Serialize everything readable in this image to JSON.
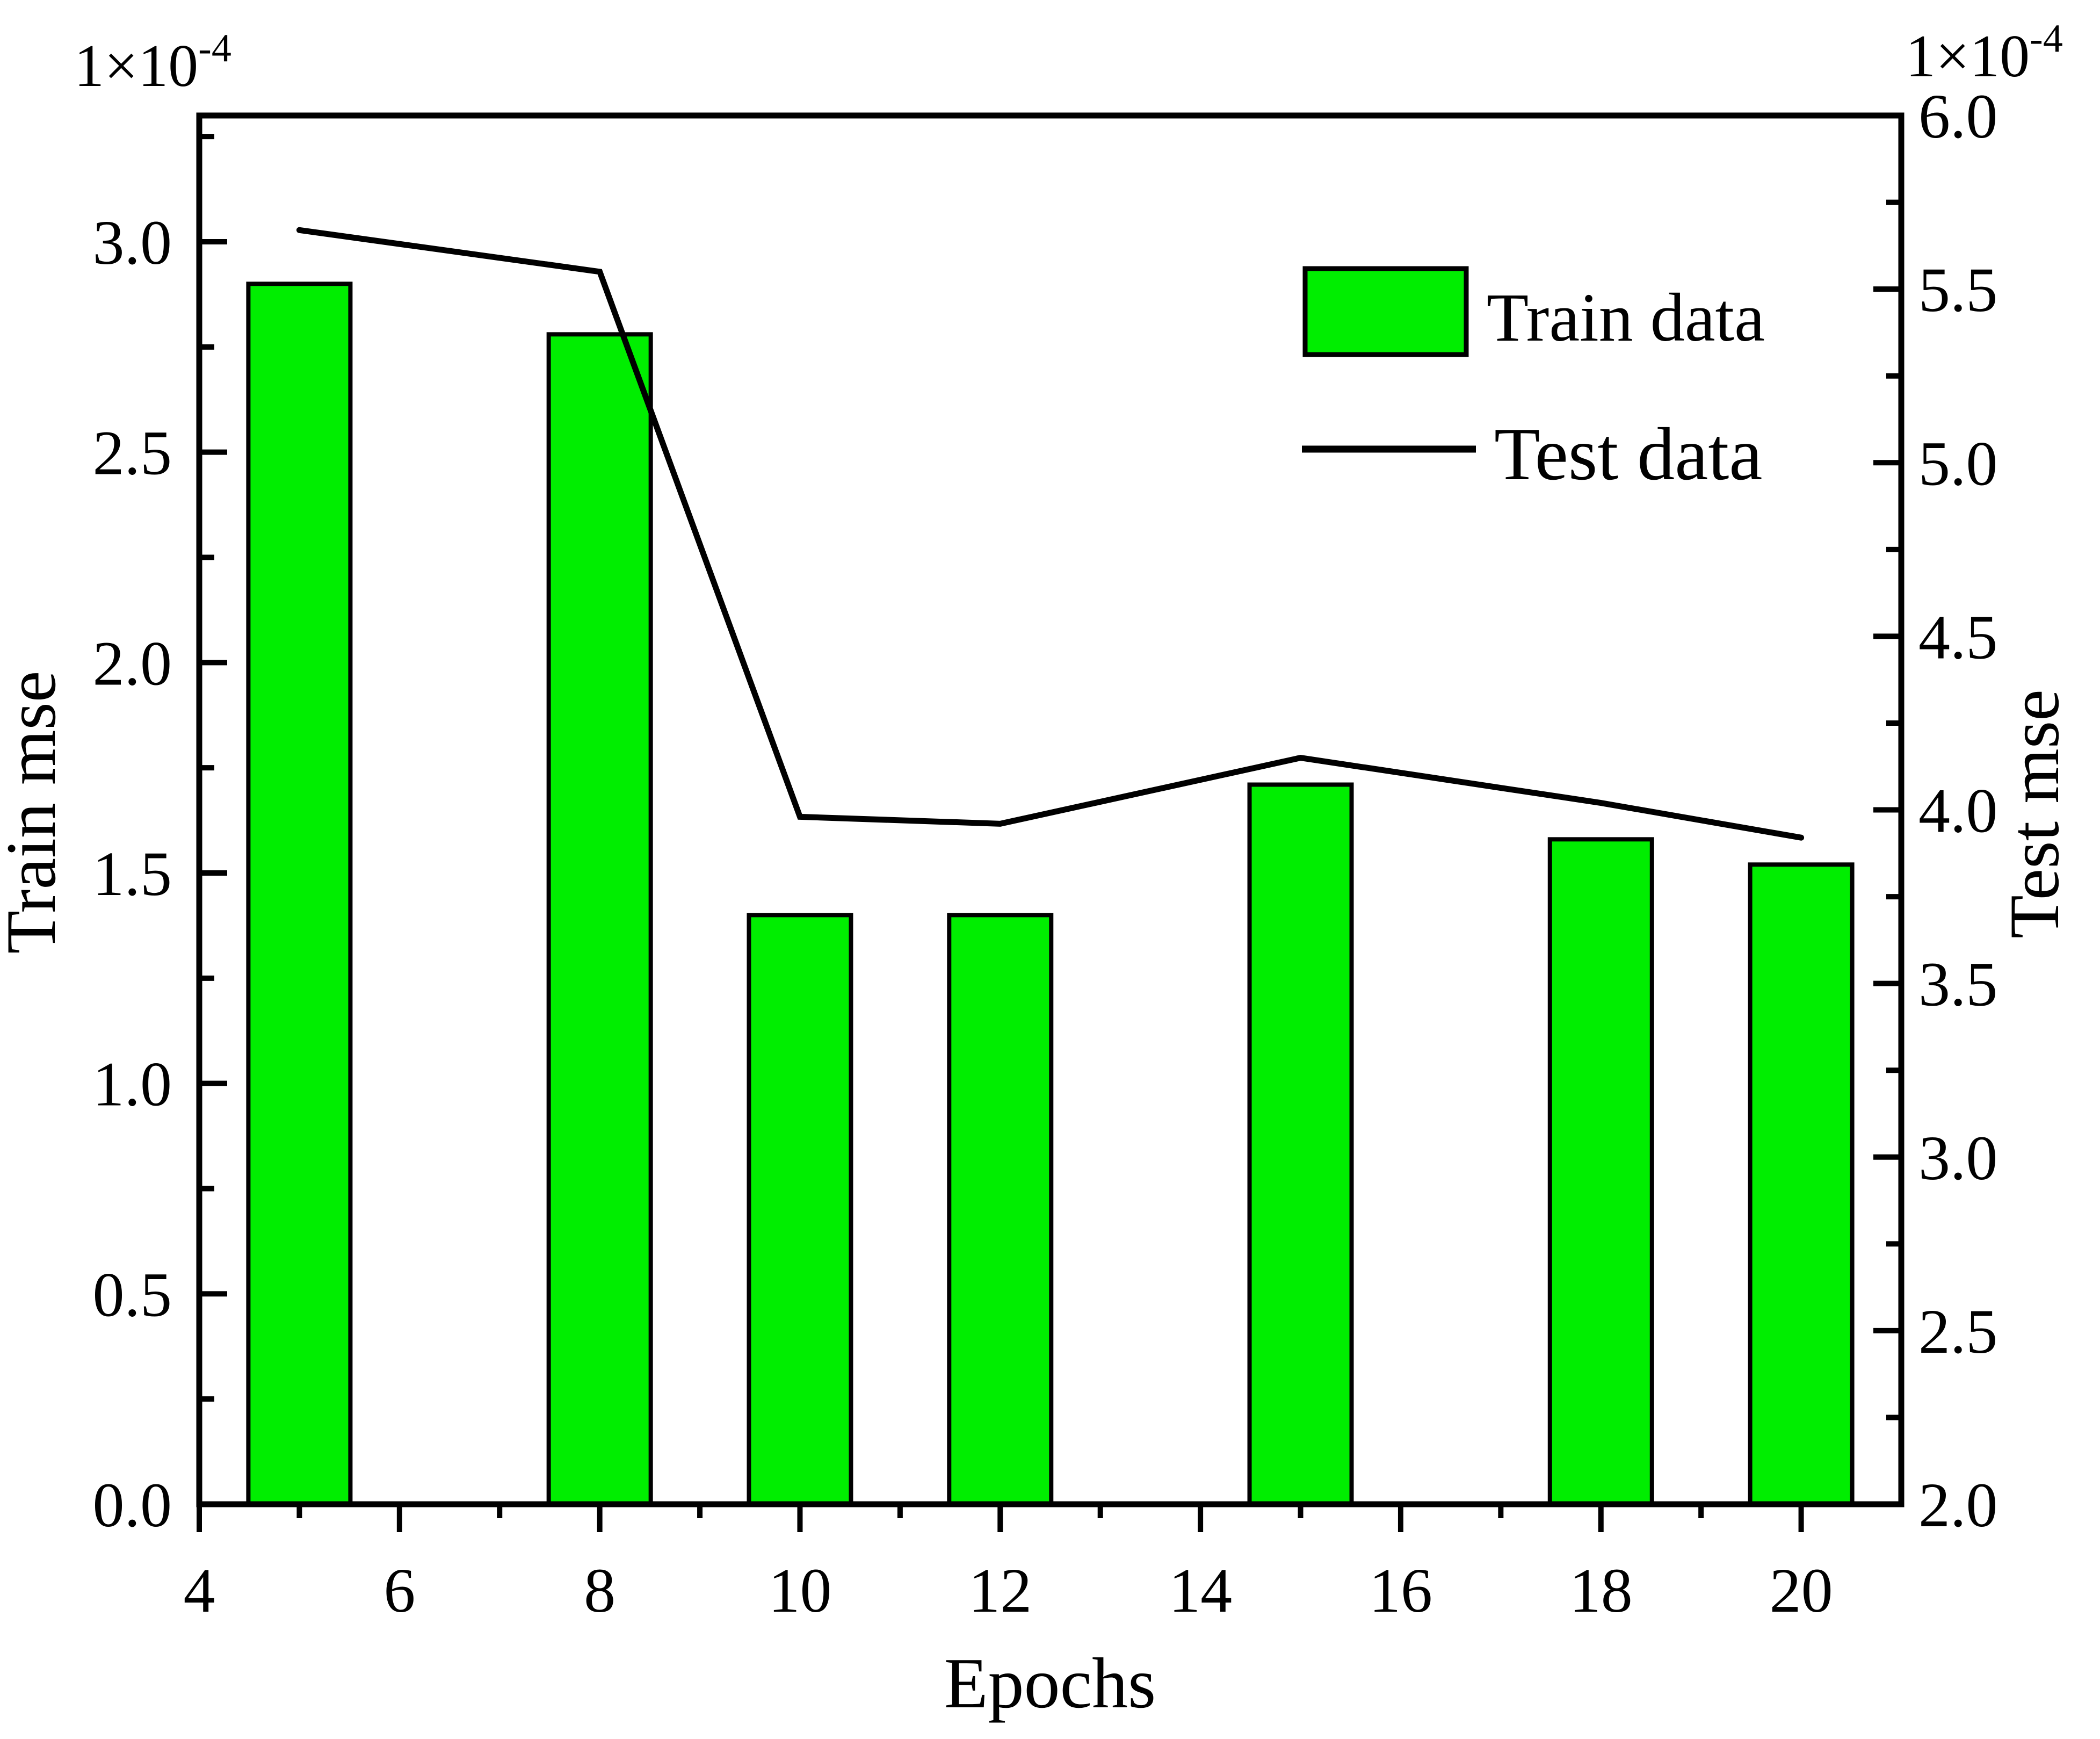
{
  "chart_data": {
    "type": "bar",
    "subtype": "bar+line combo, dual y-axis",
    "background_color": "#FFFFFF",
    "frame_color": "#000000",
    "series": [
      {
        "name": "Train data",
        "type": "bar",
        "axis": "left",
        "color": "#00EE00",
        "border_color": "#000000",
        "x": [
          5,
          8,
          10,
          12,
          15,
          18,
          20
        ],
        "values": [
          2.9,
          2.78,
          1.4,
          1.4,
          1.71,
          1.58,
          1.52
        ]
      },
      {
        "name": "Test data",
        "type": "line",
        "axis": "right",
        "color": "#000000",
        "x": [
          5,
          8,
          10,
          12,
          15,
          18,
          20
        ],
        "values": [
          5.67,
          5.55,
          3.98,
          3.96,
          4.15,
          4.02,
          3.92
        ]
      }
    ],
    "x_axis": {
      "label": "Epochs",
      "range": [
        4,
        21
      ],
      "major_ticks": [
        4,
        6,
        8,
        10,
        12,
        14,
        16,
        18,
        20
      ],
      "tick_labels": [
        "4",
        "6",
        "8",
        "10",
        "12",
        "14",
        "16",
        "18",
        "20"
      ],
      "minor_ticks": [
        5,
        7,
        9,
        11,
        13,
        15,
        17,
        19
      ]
    },
    "left_axis": {
      "label": "Train mse",
      "scale_note_base": "1×10",
      "scale_note_exp": "-4",
      "range": [
        0,
        3.3
      ],
      "major_ticks": [
        0,
        0.5,
        1.0,
        1.5,
        2.0,
        2.5,
        3.0
      ],
      "tick_labels": [
        "0.0",
        "0.5",
        "1.0",
        "1.5",
        "2.0",
        "2.5",
        "3.0"
      ],
      "minor_ticks": [
        0.25,
        0.75,
        1.25,
        1.75,
        2.25,
        2.75,
        3.25
      ]
    },
    "right_axis": {
      "label": "Test mse",
      "scale_note_base": "1×10",
      "scale_note_exp": "-4",
      "range": [
        2.0,
        6.0
      ],
      "major_ticks": [
        2.0,
        2.5,
        3.0,
        3.5,
        4.0,
        4.5,
        5.0,
        5.5,
        6.0
      ],
      "tick_labels": [
        "2.0",
        "2.5",
        "3.0",
        "3.5",
        "4.0",
        "4.5",
        "5.0",
        "5.5",
        "6.0"
      ],
      "minor_ticks": [
        2.25,
        2.75,
        3.25,
        3.75,
        4.25,
        4.75,
        5.25,
        5.75
      ]
    },
    "legend": {
      "position": "upper-right-inside",
      "items": [
        {
          "label": "Train data",
          "marker": "filled-square"
        },
        {
          "label": "Test data",
          "marker": "line"
        }
      ]
    },
    "grid": "off"
  }
}
